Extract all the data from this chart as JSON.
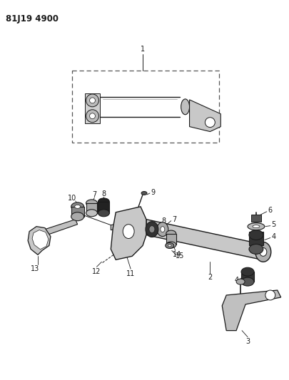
{
  "title_code": "81J19 4900",
  "background_color": "#ffffff",
  "fig_width": 4.06,
  "fig_height": 5.33,
  "dpi": 100,
  "text_color": "#1a1a1a",
  "line_color": "#1a1a1a",
  "gray_fill": "#888888",
  "light_gray": "#bbbbbb",
  "dark_gray": "#444444"
}
